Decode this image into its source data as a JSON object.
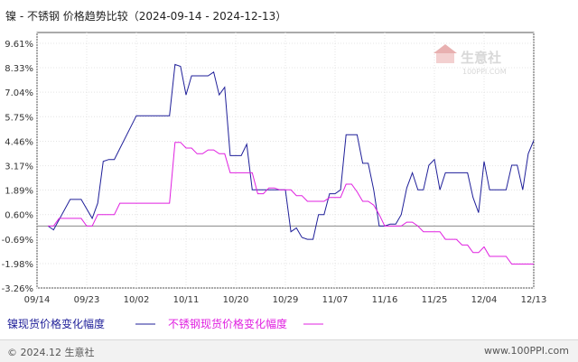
{
  "chart_data": {
    "type": "line",
    "title": "镍 - 不锈钢 价格趋势比较（2024-09-14 - 2024-12-13）",
    "xlabel": "",
    "ylabel": "",
    "y_ticks": [
      "9.61%",
      "8.33%",
      "7.04%",
      "5.75%",
      "4.46%",
      "3.17%",
      "1.89%",
      "0.60%",
      "-0.69%",
      "-1.98%",
      "-3.26%"
    ],
    "ylim": [
      -3.26,
      9.61
    ],
    "x_ticks": [
      "09/14",
      "09/23",
      "10/02",
      "10/11",
      "10/20",
      "10/29",
      "11/07",
      "11/16",
      "11/25",
      "12/04",
      "12/13"
    ],
    "x_tick_days": [
      0,
      9,
      18,
      27,
      36,
      45,
      54,
      63,
      72,
      81,
      90
    ],
    "grid": true,
    "legend_position": "bottom-left",
    "series": [
      {
        "name": "镍现货价格变化幅度",
        "color": "#1f1f99",
        "x": [
          2,
          3,
          6,
          7,
          8,
          10,
          11,
          12,
          13,
          14,
          18,
          19,
          20,
          21,
          22,
          23,
          24,
          25,
          26,
          27,
          28,
          29,
          30,
          31,
          32,
          33,
          34,
          35,
          36,
          37,
          38,
          39,
          40,
          41,
          42,
          43,
          44,
          45,
          46,
          47,
          48,
          49,
          50,
          51,
          52,
          53,
          54,
          55,
          56,
          57,
          58,
          59,
          60,
          61,
          62,
          63,
          64,
          65,
          66,
          67,
          68,
          69,
          70,
          71,
          72,
          73,
          74,
          75,
          76,
          77,
          78,
          79,
          80,
          81,
          82,
          83,
          84,
          85,
          86,
          87,
          88,
          89,
          90
        ],
        "y": [
          0.0,
          -0.2,
          1.4,
          1.4,
          1.4,
          0.4,
          1.2,
          3.4,
          3.5,
          3.5,
          5.8,
          5.8,
          5.8,
          5.8,
          5.8,
          5.8,
          5.8,
          8.5,
          8.4,
          6.9,
          7.9,
          7.9,
          7.9,
          7.9,
          8.1,
          6.9,
          7.3,
          3.7,
          3.7,
          3.7,
          4.3,
          1.9,
          1.9,
          1.9,
          1.9,
          1.9,
          1.9,
          1.9,
          -0.3,
          -0.1,
          -0.6,
          -0.7,
          -0.7,
          0.6,
          0.6,
          1.7,
          1.7,
          1.9,
          4.8,
          4.8,
          4.8,
          3.3,
          3.3,
          1.9,
          0.0,
          0.0,
          0.1,
          0.1,
          0.6,
          2.0,
          2.8,
          1.9,
          1.9,
          3.2,
          3.5,
          1.9,
          2.8,
          2.8,
          2.8,
          2.8,
          2.8,
          1.5,
          0.7,
          3.4,
          1.9,
          1.9,
          1.9,
          1.9,
          3.2,
          3.2,
          1.9,
          3.8,
          4.5
        ]
      },
      {
        "name": "不锈钢现货价格变化幅度",
        "color": "#e020e0",
        "x": [
          2,
          3,
          4,
          5,
          6,
          7,
          8,
          9,
          10,
          11,
          12,
          13,
          14,
          15,
          16,
          18,
          19,
          20,
          21,
          22,
          23,
          24,
          25,
          26,
          27,
          28,
          29,
          30,
          31,
          32,
          33,
          34,
          35,
          36,
          37,
          38,
          39,
          40,
          41,
          42,
          43,
          44,
          45,
          46,
          47,
          48,
          49,
          50,
          51,
          52,
          53,
          54,
          55,
          56,
          57,
          58,
          59,
          60,
          61,
          62,
          63,
          64,
          65,
          66,
          67,
          68,
          69,
          70,
          71,
          72,
          73,
          74,
          75,
          76,
          77,
          78,
          79,
          80,
          81,
          82,
          83,
          84,
          85,
          86,
          87,
          88,
          89,
          90
        ],
        "y": [
          0.0,
          0.0,
          0.4,
          0.4,
          0.4,
          0.4,
          0.4,
          0.0,
          0.0,
          0.6,
          0.6,
          0.6,
          0.6,
          1.2,
          1.2,
          1.2,
          1.2,
          1.2,
          1.2,
          1.2,
          1.2,
          1.2,
          4.4,
          4.4,
          4.1,
          4.1,
          3.8,
          3.8,
          4.0,
          4.0,
          3.8,
          3.8,
          2.8,
          2.8,
          2.8,
          2.8,
          2.8,
          1.7,
          1.7,
          2.0,
          2.0,
          1.9,
          1.9,
          1.9,
          1.6,
          1.6,
          1.3,
          1.3,
          1.3,
          1.3,
          1.5,
          1.5,
          1.5,
          2.2,
          2.2,
          1.8,
          1.3,
          1.3,
          1.1,
          0.6,
          0.0,
          0.0,
          0.0,
          0.0,
          0.2,
          0.2,
          0.0,
          -0.3,
          -0.3,
          -0.3,
          -0.3,
          -0.7,
          -0.7,
          -0.7,
          -1.0,
          -1.0,
          -1.4,
          -1.4,
          -1.1,
          -1.6,
          -1.6,
          -1.6,
          -1.6,
          -2.0,
          -2.0,
          -2.0,
          -2.0,
          -2.0
        ]
      }
    ]
  },
  "watermark": {
    "name": "生意社",
    "url": "100PPI.COM"
  },
  "footer": {
    "copyright": "© 2024.12 生意社",
    "site": "www.100PPI.com"
  }
}
